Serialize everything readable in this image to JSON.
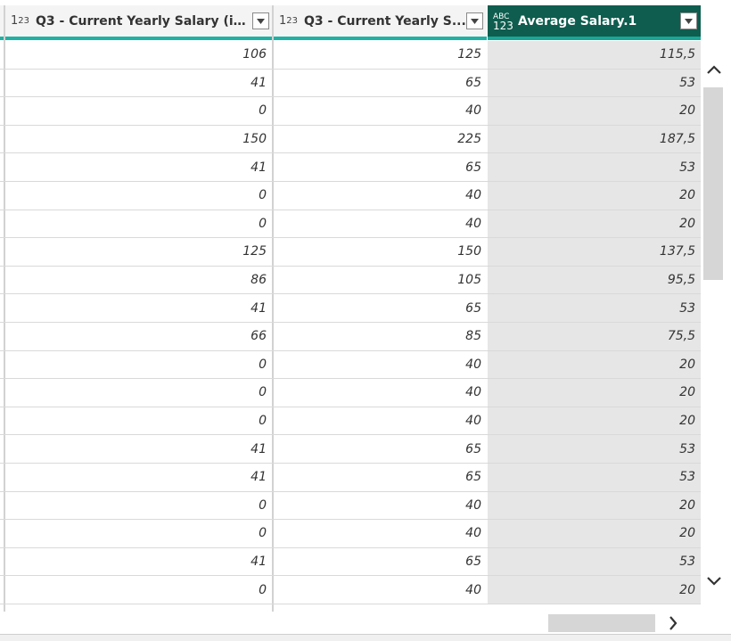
{
  "columns": [
    {
      "title": "Q3 - Current Yearly Salary (in...",
      "type_icon": "number-type-icon"
    },
    {
      "title": "Q3 - Current Yearly S...",
      "type_icon": "number-type-icon"
    },
    {
      "title": "Average Salary.1",
      "type_icon": "any-type-icon",
      "selected": true
    }
  ],
  "rows": [
    [
      "106",
      "125",
      "115,5"
    ],
    [
      "41",
      "65",
      "53"
    ],
    [
      "0",
      "40",
      "20"
    ],
    [
      "150",
      "225",
      "187,5"
    ],
    [
      "41",
      "65",
      "53"
    ],
    [
      "0",
      "40",
      "20"
    ],
    [
      "0",
      "40",
      "20"
    ],
    [
      "125",
      "150",
      "137,5"
    ],
    [
      "86",
      "105",
      "95,5"
    ],
    [
      "41",
      "65",
      "53"
    ],
    [
      "66",
      "85",
      "75,5"
    ],
    [
      "0",
      "40",
      "20"
    ],
    [
      "0",
      "40",
      "20"
    ],
    [
      "0",
      "40",
      "20"
    ],
    [
      "41",
      "65",
      "53"
    ],
    [
      "41",
      "65",
      "53"
    ],
    [
      "0",
      "40",
      "20"
    ],
    [
      "0",
      "40",
      "20"
    ],
    [
      "41",
      "65",
      "53"
    ],
    [
      "0",
      "40",
      "20"
    ]
  ],
  "icons": {
    "scroll_up": "chevron-up-icon",
    "scroll_down": "chevron-down-icon",
    "scroll_right": "chevron-right-icon",
    "dropdown": "dropdown-arrow-icon"
  },
  "colors": {
    "header_bg": "#f4f4f4",
    "selected_header_bg": "#0e5d4e",
    "accent_bar": "#1fb1a3",
    "selected_cell_bg": "#e6e6e6"
  }
}
